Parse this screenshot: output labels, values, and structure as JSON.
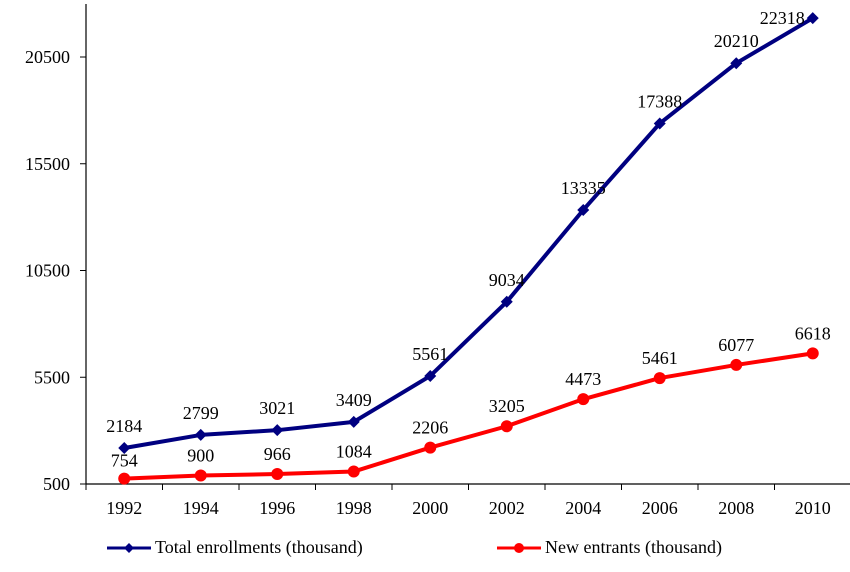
{
  "chart_data": {
    "type": "line",
    "title": "",
    "xlabel": "",
    "ylabel": "",
    "categories": [
      "1992",
      "1994",
      "1996",
      "1998",
      "2000",
      "2002",
      "2004",
      "2006",
      "2008",
      "2010"
    ],
    "y_ticks": [
      "500",
      "5500",
      "10500",
      "15500",
      "20500"
    ],
    "ylim": [
      500,
      23500
    ],
    "grid": false,
    "legend_position": "bottom",
    "series": [
      {
        "name": "Total enrollments (thousand)",
        "color": "#000080",
        "marker": "diamond",
        "values": [
          2184,
          2799,
          3021,
          3409,
          5561,
          9034,
          13335,
          17388,
          20210,
          22318
        ],
        "labels": [
          "2184",
          "2799",
          "3021",
          "3409",
          "5561",
          "9034",
          "13335",
          "17388",
          "20210",
          "22318"
        ]
      },
      {
        "name": "New entrants (thousand)",
        "color": "#ff0000",
        "marker": "circle",
        "values": [
          754,
          900,
          966,
          1084,
          2206,
          3205,
          4473,
          5461,
          6077,
          6618
        ],
        "labels": [
          "754",
          "900",
          "966",
          "1084",
          "2206",
          "3205",
          "4473",
          "5461",
          "6077",
          "6618"
        ]
      }
    ]
  }
}
